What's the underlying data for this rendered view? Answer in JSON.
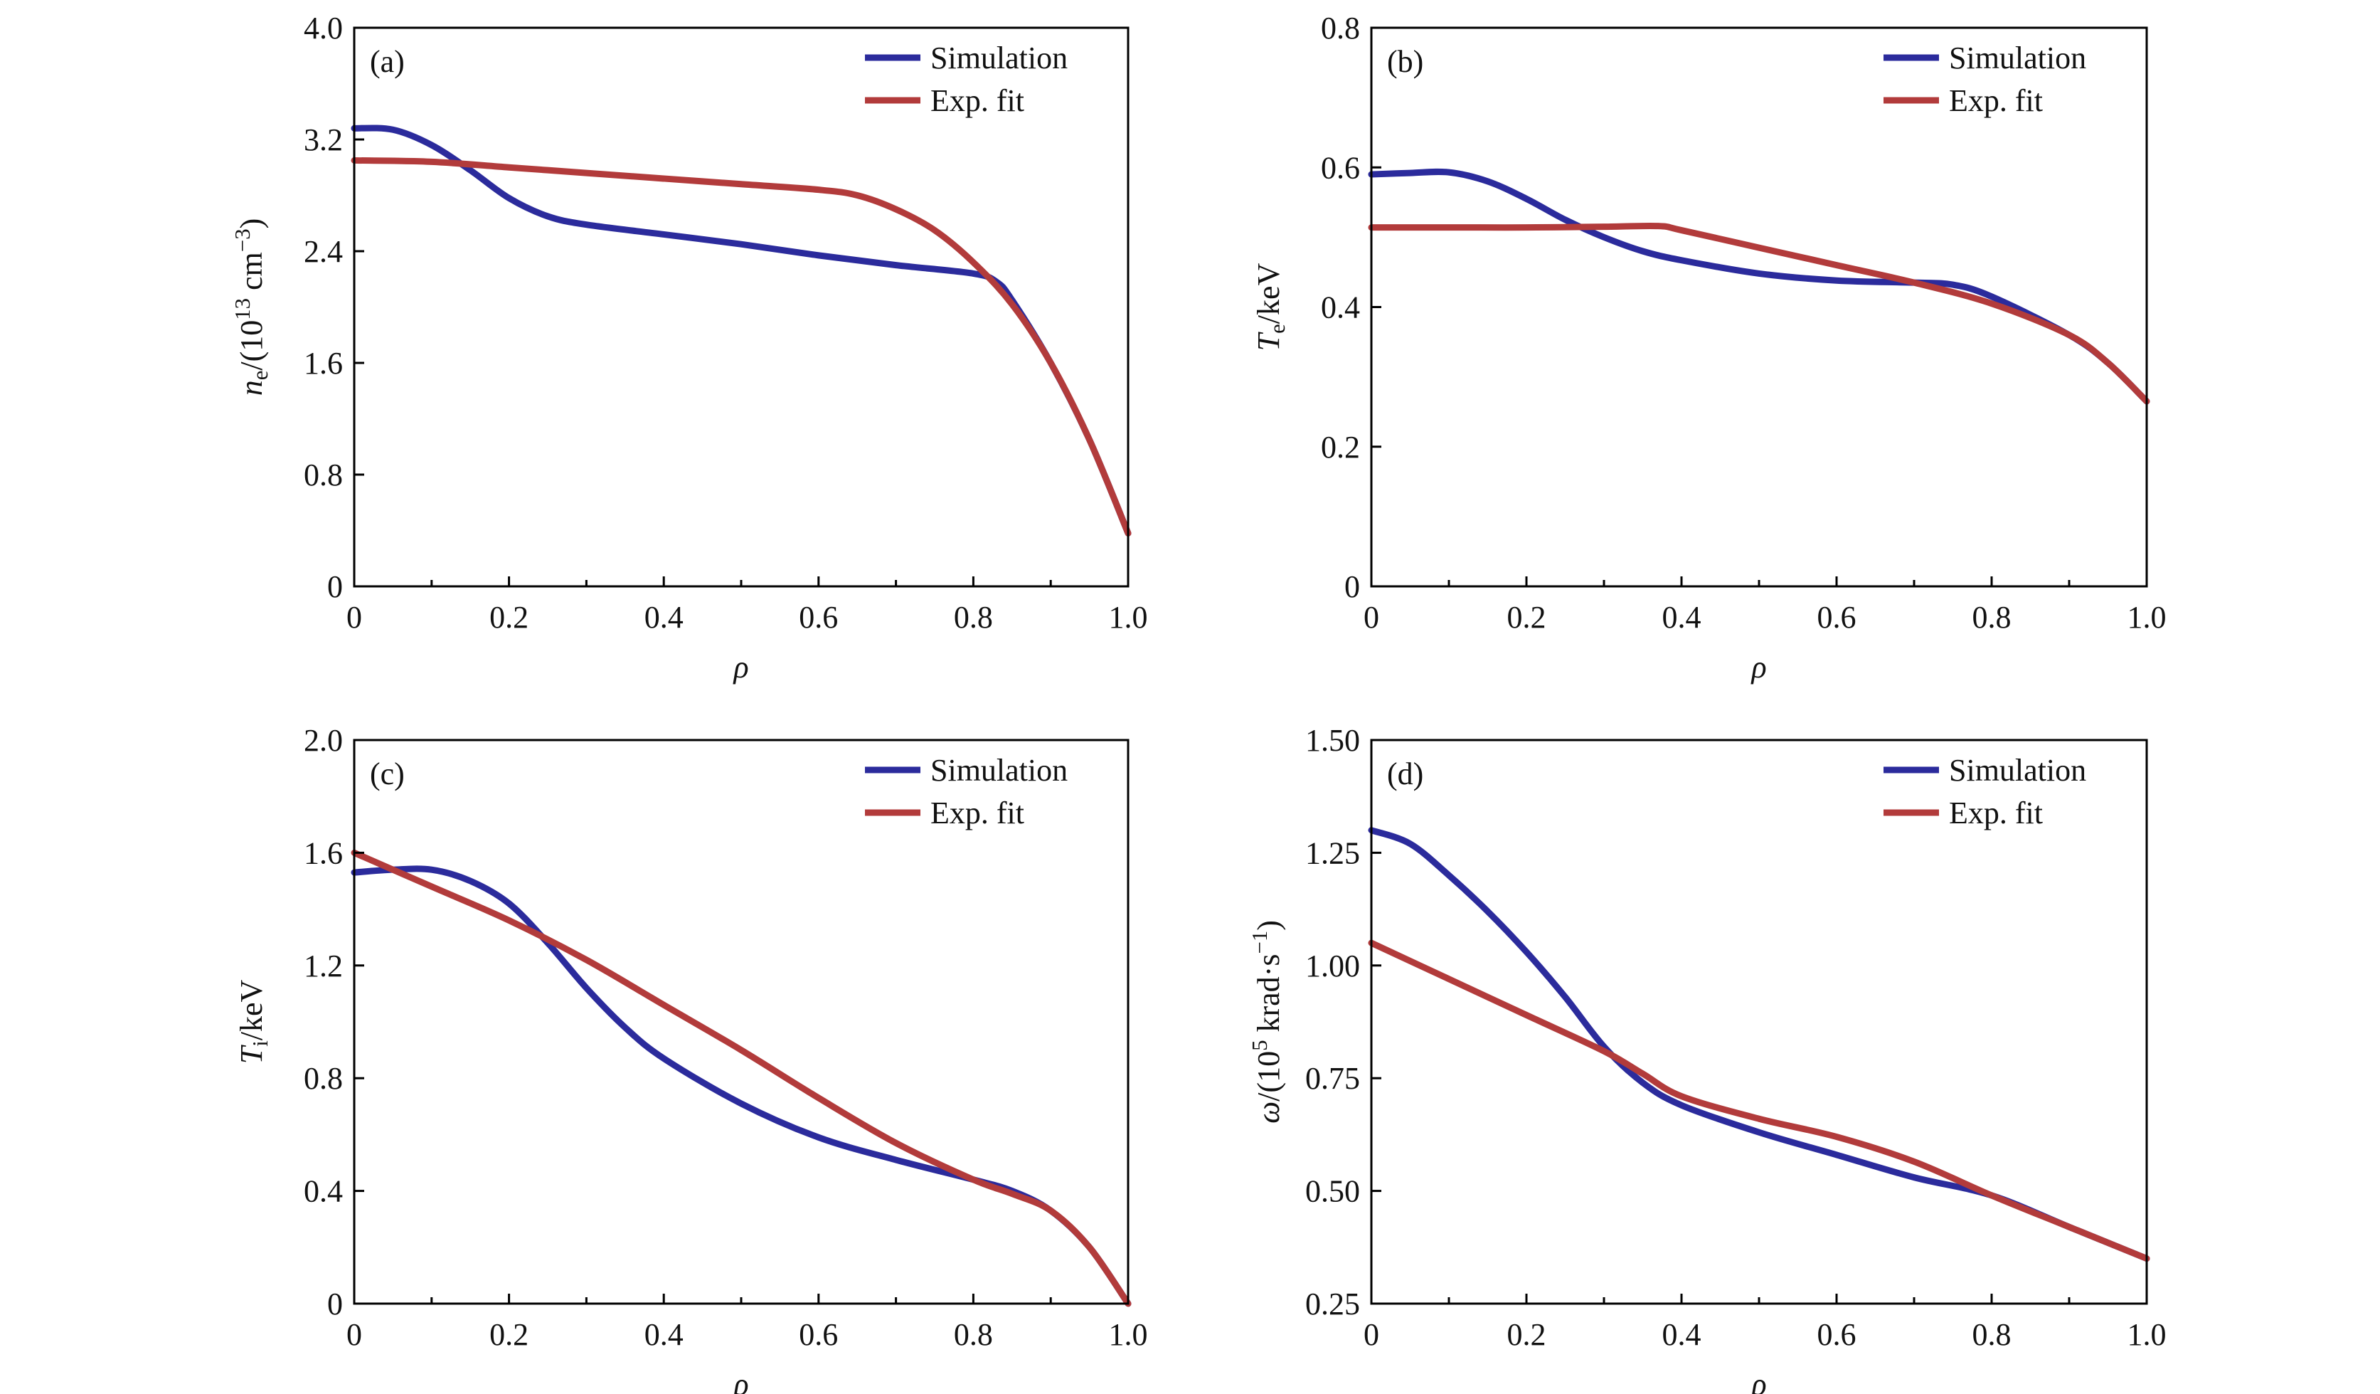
{
  "colors": {
    "simulation": "#2b2b9c",
    "exp_fit": "#b23b3b",
    "axis": "#000000"
  },
  "chart_data": [
    {
      "type": "line",
      "panel_label": "(a)",
      "xlabel": "ρ",
      "ylabel": [
        {
          "t": "n",
          "s": "i"
        },
        {
          "t": "e",
          "s": "sub"
        },
        {
          "t": "/(10",
          "s": ""
        },
        {
          "t": "13",
          "s": "sup"
        },
        {
          "t": " cm",
          "s": ""
        },
        {
          "t": "−3",
          "s": "sup"
        },
        {
          "t": ")",
          "s": ""
        }
      ],
      "xlim": [
        0,
        1.0
      ],
      "ylim": [
        0,
        4.0
      ],
      "xticks": [
        "0",
        "0.2",
        "0.4",
        "0.6",
        "0.8",
        "1.0"
      ],
      "xtick_values": [
        0,
        0.2,
        0.4,
        0.6,
        0.8,
        1.0
      ],
      "yticks": [
        "0",
        "0.8",
        "1.6",
        "2.4",
        "3.2",
        "4.0"
      ],
      "ytick_values": [
        0,
        0.8,
        1.6,
        2.4,
        3.2,
        4.0
      ],
      "legend": {
        "placement": "top-right",
        "entries": [
          "Simulation",
          "Exp. fit"
        ]
      },
      "series": [
        {
          "name": "Simulation",
          "x": [
            0,
            0.05,
            0.1,
            0.15,
            0.2,
            0.25,
            0.3,
            0.4,
            0.5,
            0.6,
            0.7,
            0.8,
            0.83,
            0.85,
            0.9,
            0.95,
            1.0
          ],
          "y": [
            3.28,
            3.27,
            3.16,
            2.98,
            2.78,
            2.65,
            2.59,
            2.52,
            2.45,
            2.37,
            2.3,
            2.24,
            2.18,
            2.05,
            1.6,
            1.05,
            0.38
          ]
        },
        {
          "name": "Exp. fit",
          "x": [
            0,
            0.1,
            0.2,
            0.3,
            0.4,
            0.5,
            0.6,
            0.65,
            0.7,
            0.75,
            0.8,
            0.85,
            0.9,
            0.95,
            1.0
          ],
          "y": [
            3.05,
            3.04,
            3.0,
            2.96,
            2.92,
            2.88,
            2.84,
            2.8,
            2.7,
            2.55,
            2.32,
            2.02,
            1.6,
            1.05,
            0.38
          ]
        }
      ]
    },
    {
      "type": "line",
      "panel_label": "(b)",
      "xlabel": "ρ",
      "ylabel": [
        {
          "t": "T",
          "s": "i"
        },
        {
          "t": "e",
          "s": "sub"
        },
        {
          "t": "/keV",
          "s": ""
        }
      ],
      "xlim": [
        0,
        1.0
      ],
      "ylim": [
        0,
        0.8
      ],
      "xticks": [
        "0",
        "0.2",
        "0.4",
        "0.6",
        "0.8",
        "1.0"
      ],
      "xtick_values": [
        0,
        0.2,
        0.4,
        0.6,
        0.8,
        1.0
      ],
      "yticks": [
        "0",
        "0.2",
        "0.4",
        "0.6",
        "0.8"
      ],
      "ytick_values": [
        0,
        0.2,
        0.4,
        0.6,
        0.8
      ],
      "legend": {
        "placement": "top-right",
        "entries": [
          "Simulation",
          "Exp. fit"
        ]
      },
      "series": [
        {
          "name": "Simulation",
          "x": [
            0,
            0.05,
            0.1,
            0.15,
            0.2,
            0.25,
            0.3,
            0.35,
            0.4,
            0.5,
            0.6,
            0.7,
            0.75,
            0.8,
            0.9,
            0.95,
            1.0
          ],
          "y": [
            0.59,
            0.592,
            0.593,
            0.58,
            0.555,
            0.525,
            0.5,
            0.48,
            0.467,
            0.448,
            0.438,
            0.435,
            0.432,
            0.415,
            0.36,
            0.32,
            0.265
          ]
        },
        {
          "name": "Exp. fit",
          "x": [
            0,
            0.1,
            0.2,
            0.3,
            0.37,
            0.4,
            0.5,
            0.6,
            0.7,
            0.8,
            0.9,
            0.95,
            1.0
          ],
          "y": [
            0.514,
            0.514,
            0.514,
            0.515,
            0.516,
            0.51,
            0.485,
            0.46,
            0.435,
            0.405,
            0.36,
            0.32,
            0.265
          ]
        }
      ]
    },
    {
      "type": "line",
      "panel_label": "(c)",
      "xlabel": "ρ",
      "ylabel": [
        {
          "t": "T",
          "s": "i"
        },
        {
          "t": "i",
          "s": "sub"
        },
        {
          "t": "/keV",
          "s": ""
        }
      ],
      "xlim": [
        0,
        1.0
      ],
      "ylim": [
        0,
        2.0
      ],
      "xticks": [
        "0",
        "0.2",
        "0.4",
        "0.6",
        "0.8",
        "1.0"
      ],
      "xtick_values": [
        0,
        0.2,
        0.4,
        0.6,
        0.8,
        1.0
      ],
      "yticks": [
        "0",
        "0.4",
        "0.8",
        "1.2",
        "1.6",
        "2.0"
      ],
      "ytick_values": [
        0,
        0.4,
        0.8,
        1.2,
        1.6,
        2.0
      ],
      "legend": {
        "placement": "top-right",
        "entries": [
          "Simulation",
          "Exp. fit"
        ]
      },
      "series": [
        {
          "name": "Simulation",
          "x": [
            0,
            0.05,
            0.1,
            0.15,
            0.2,
            0.25,
            0.3,
            0.35,
            0.4,
            0.5,
            0.6,
            0.7,
            0.8,
            0.85,
            0.9,
            0.95,
            1.0
          ],
          "y": [
            1.53,
            1.54,
            1.54,
            1.5,
            1.42,
            1.28,
            1.12,
            0.98,
            0.87,
            0.71,
            0.59,
            0.51,
            0.44,
            0.4,
            0.33,
            0.2,
            0.0
          ]
        },
        {
          "name": "Exp. fit",
          "x": [
            0,
            0.1,
            0.2,
            0.3,
            0.4,
            0.5,
            0.6,
            0.7,
            0.8,
            0.85,
            0.9,
            0.95,
            1.0
          ],
          "y": [
            1.6,
            1.48,
            1.36,
            1.22,
            1.06,
            0.9,
            0.73,
            0.57,
            0.44,
            0.39,
            0.33,
            0.2,
            0.0
          ]
        }
      ]
    },
    {
      "type": "line",
      "panel_label": "(d)",
      "xlabel": "ρ",
      "ylabel": [
        {
          "t": "ω",
          "s": "i"
        },
        {
          "t": "/(10",
          "s": ""
        },
        {
          "t": "5",
          "s": "sup"
        },
        {
          "t": " krad·s",
          "s": ""
        },
        {
          "t": "−1",
          "s": "sup"
        },
        {
          "t": ")",
          "s": ""
        }
      ],
      "xlim": [
        0,
        1.0
      ],
      "ylim": [
        0.25,
        1.5
      ],
      "xticks": [
        "0",
        "0.2",
        "0.4",
        "0.6",
        "0.8",
        "1.0"
      ],
      "xtick_values": [
        0,
        0.2,
        0.4,
        0.6,
        0.8,
        1.0
      ],
      "yticks": [
        "0.25",
        "0.50",
        "0.75",
        "1.00",
        "1.25",
        "1.50"
      ],
      "ytick_values": [
        0.25,
        0.5,
        0.75,
        1.0,
        1.25,
        1.5
      ],
      "legend": {
        "placement": "top-right",
        "entries": [
          "Simulation",
          "Exp. fit"
        ]
      },
      "series": [
        {
          "name": "Simulation",
          "x": [
            0,
            0.05,
            0.1,
            0.15,
            0.2,
            0.25,
            0.3,
            0.35,
            0.4,
            0.5,
            0.6,
            0.7,
            0.8,
            0.9,
            1.0
          ],
          "y": [
            1.3,
            1.27,
            1.2,
            1.12,
            1.03,
            0.93,
            0.82,
            0.74,
            0.69,
            0.63,
            0.58,
            0.53,
            0.49,
            0.42,
            0.35
          ]
        },
        {
          "name": "Exp. fit",
          "x": [
            0,
            0.1,
            0.2,
            0.3,
            0.35,
            0.4,
            0.5,
            0.6,
            0.7,
            0.8,
            0.9,
            1.0
          ],
          "y": [
            1.05,
            0.97,
            0.89,
            0.81,
            0.76,
            0.71,
            0.66,
            0.62,
            0.565,
            0.49,
            0.42,
            0.35
          ]
        }
      ]
    }
  ]
}
